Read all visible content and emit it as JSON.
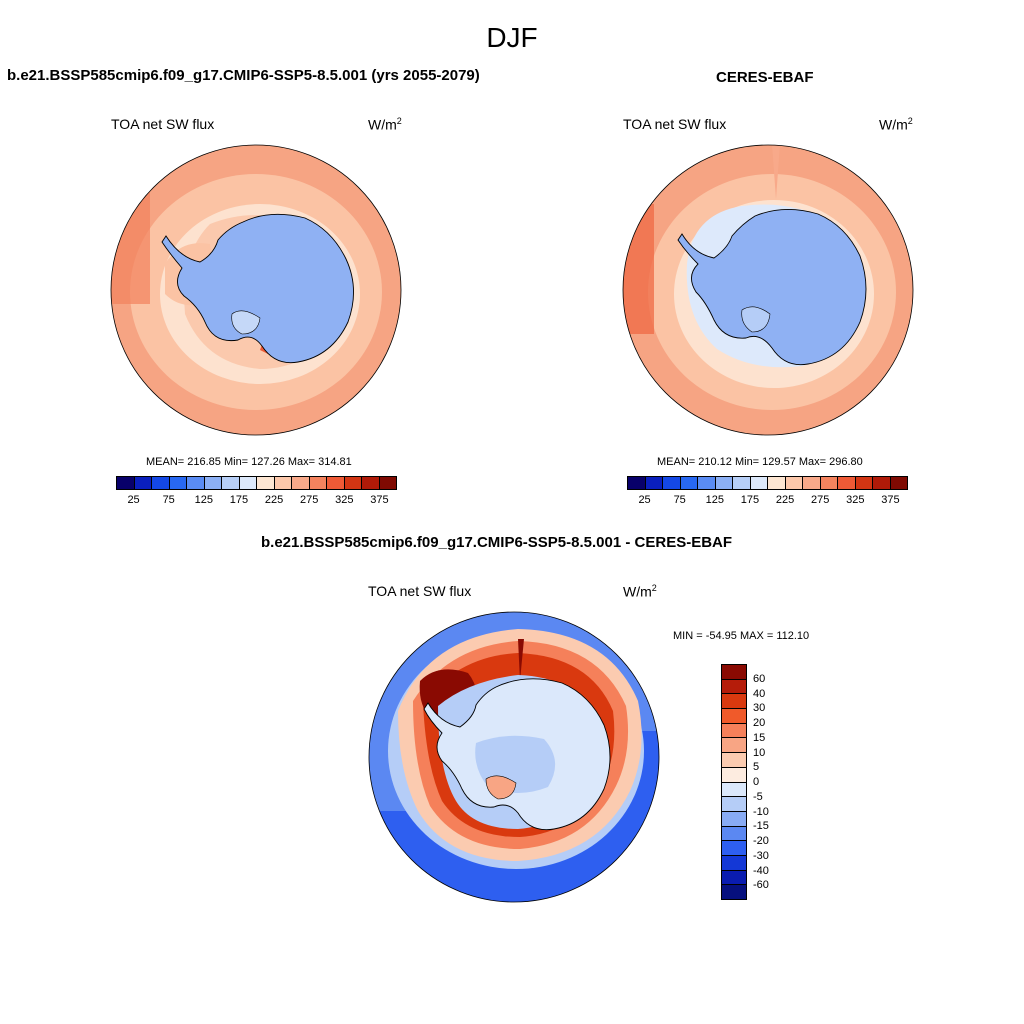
{
  "suptitle": "DJF",
  "panels": [
    {
      "title": "b.e21.BSSP585cmip6.f09_g17.CMIP6-SSP5-8.5.001 (yrs 2055-2079)",
      "variable": "TOA net SW flux",
      "units": "W/m",
      "units_exp": "2",
      "stats": "MEAN= 216.85  Min= 127.26  Max= 314.81"
    },
    {
      "title": "CERES-EBAF",
      "variable": "TOA net SW flux",
      "units": "W/m",
      "units_exp": "2",
      "stats": "MEAN= 210.12  Min= 129.57  Max= 296.80"
    },
    {
      "title": "b.e21.BSSP585cmip6.f09_g17.CMIP6-SSP5-8.5.001 - CERES-EBAF",
      "variable": "TOA net SW flux",
      "units": "W/m",
      "units_exp": "2",
      "stats": "MIN = -54.95 MAX = 112.10"
    }
  ],
  "colorbar_abs": {
    "colors": [
      "#08006a",
      "#0a1fbe",
      "#1448e6",
      "#2868f2",
      "#5a8cf4",
      "#8cb0f5",
      "#b7cff7",
      "#dde9fb",
      "#fde6d2",
      "#fcc8ab",
      "#f8a98a",
      "#f4835e",
      "#ef5a36",
      "#d23513",
      "#b01a08",
      "#7f0a02"
    ],
    "tick_labels": [
      "25",
      "75",
      "125",
      "175",
      "225",
      "275",
      "325",
      "375"
    ]
  },
  "colorbar_diff": {
    "colors": [
      "#8a0a02",
      "#b51c0a",
      "#d9390f",
      "#f05a2a",
      "#f5805a",
      "#f8a584",
      "#fbcbb0",
      "#fdece0",
      "#dbe8fb",
      "#b5cdf7",
      "#88abf4",
      "#5b88f2",
      "#2e5ff0",
      "#1438d6",
      "#0a1cb0",
      "#06107e"
    ],
    "tick_labels": [
      "60",
      "40",
      "30",
      "20",
      "15",
      "10",
      "5",
      "0",
      "-5",
      "-10",
      "-15",
      "-20",
      "-30",
      "-40",
      "-60"
    ]
  }
}
